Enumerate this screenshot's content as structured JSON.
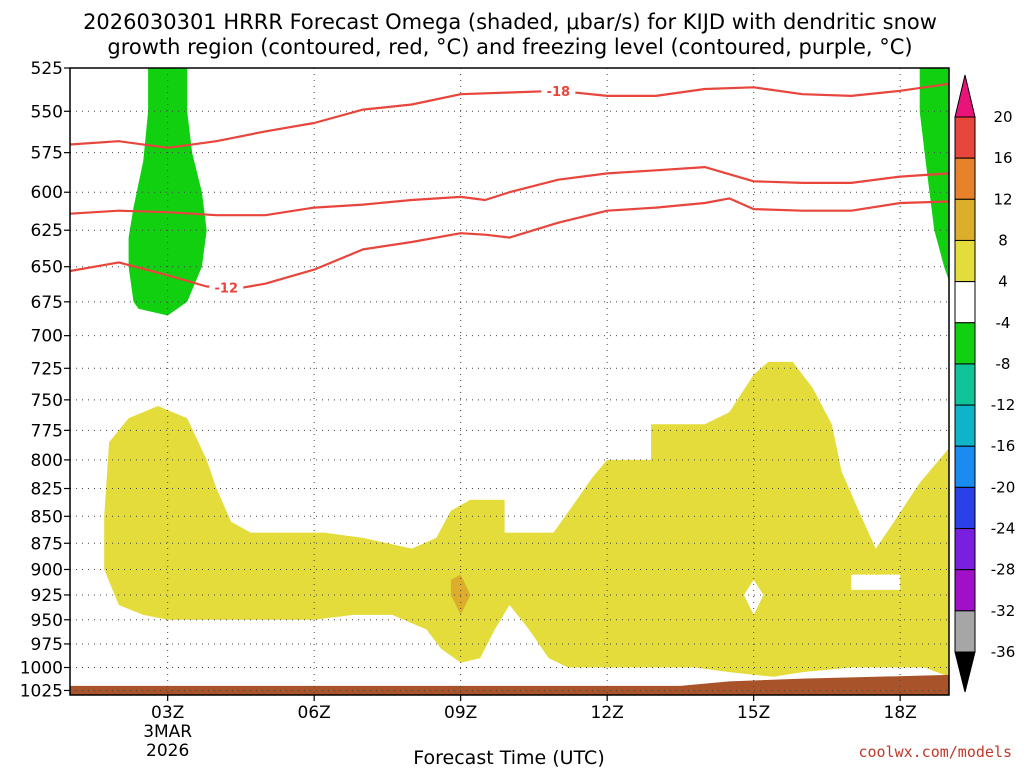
{
  "chart_data": {
    "type": "heatmap",
    "title_lines": [
      "2026030301 HRRR Forecast Omega (shaded, μbar/s) for KIJD with dendritic snow",
      "growth region (contoured, red, °C) and freezing level (contoured, purple, °C)"
    ],
    "xlabel": "Forecast Time (UTC)",
    "x_range_hours": [
      0,
      18
    ],
    "x_ticks": [
      {
        "hour": 2,
        "label": "03Z"
      },
      {
        "hour": 5,
        "label": "06Z"
      },
      {
        "hour": 8,
        "label": "09Z"
      },
      {
        "hour": 11,
        "label": "12Z"
      },
      {
        "hour": 14,
        "label": "15Z"
      },
      {
        "hour": 17,
        "label": "18Z"
      }
    ],
    "x_sublabels": [
      "3MAR",
      "2026"
    ],
    "ylabel": "",
    "y_axis_scale": "log-pressure",
    "y_range_mb": [
      1030,
      525
    ],
    "y_ticks": [
      525,
      550,
      575,
      600,
      625,
      650,
      675,
      700,
      725,
      750,
      775,
      800,
      825,
      850,
      875,
      900,
      925,
      950,
      975,
      1000,
      1025
    ],
    "grid": true,
    "colorbar": {
      "placement": "right",
      "labels": [
        20,
        16,
        12,
        8,
        4,
        -4,
        -8,
        -12,
        -16,
        -20,
        -24,
        -28,
        -32,
        -36
      ],
      "bins": [
        {
          "from": 20,
          "to": 16,
          "color": "#e8453c"
        },
        {
          "from": 16,
          "to": 12,
          "color": "#e8822a"
        },
        {
          "from": 12,
          "to": 8,
          "color": "#dcae2c"
        },
        {
          "from": 8,
          "to": 4,
          "color": "#e3dc3a"
        },
        {
          "from": 4,
          "to": -4,
          "color": "#ffffff"
        },
        {
          "from": -4,
          "to": -8,
          "color": "#10d010"
        },
        {
          "from": -8,
          "to": -12,
          "color": "#10c49a"
        },
        {
          "from": -12,
          "to": -16,
          "color": "#10b4c8"
        },
        {
          "from": -16,
          "to": -20,
          "color": "#1a8cf0"
        },
        {
          "from": -20,
          "to": -24,
          "color": "#2a40e8"
        },
        {
          "from": -24,
          "to": -28,
          "color": "#7a1ee0"
        },
        {
          "from": -28,
          "to": -32,
          "color": "#a010c8"
        },
        {
          "from": -32,
          "to": -36,
          "color": "#a6a6a6"
        }
      ],
      "top_extension_color": "#e8147a",
      "bottom_extension_color": "#000000"
    },
    "shaded_regions": [
      {
        "name": "descent-green-early",
        "bin": "-4 to -8",
        "color": "#10d010",
        "points": [
          [
            1.6,
            525
          ],
          [
            2.4,
            525
          ],
          [
            2.4,
            550
          ],
          [
            2.5,
            575
          ],
          [
            2.7,
            600
          ],
          [
            2.8,
            625
          ],
          [
            2.7,
            650
          ],
          [
            2.4,
            675
          ],
          [
            2.0,
            685
          ],
          [
            1.4,
            680
          ],
          [
            1.3,
            675
          ],
          [
            1.2,
            650
          ],
          [
            1.2,
            630
          ],
          [
            1.3,
            610
          ],
          [
            1.5,
            580
          ],
          [
            1.6,
            550
          ]
        ]
      },
      {
        "name": "descent-green-late",
        "bin": "-4 to -8",
        "color": "#10d010",
        "points": [
          [
            17.4,
            525
          ],
          [
            18.0,
            525
          ],
          [
            18.0,
            660
          ],
          [
            17.9,
            650
          ],
          [
            17.7,
            625
          ],
          [
            17.6,
            600
          ],
          [
            17.5,
            575
          ],
          [
            17.4,
            550
          ]
        ]
      },
      {
        "name": "ascent-yellow",
        "bin": "4 to 8",
        "color": "#e3dc3a",
        "points": [
          [
            0.7,
            850
          ],
          [
            0.8,
            785
          ],
          [
            1.2,
            765
          ],
          [
            1.8,
            755
          ],
          [
            2.4,
            765
          ],
          [
            2.8,
            800
          ],
          [
            3.0,
            825
          ],
          [
            3.3,
            855
          ],
          [
            3.7,
            865
          ],
          [
            4.5,
            865
          ],
          [
            5.2,
            865
          ],
          [
            6.0,
            870
          ],
          [
            7.0,
            880
          ],
          [
            7.5,
            870
          ],
          [
            7.8,
            845
          ],
          [
            8.2,
            835
          ],
          [
            8.6,
            835
          ],
          [
            8.9,
            835
          ],
          [
            8.9,
            865
          ],
          [
            9.9,
            865
          ],
          [
            10.3,
            840
          ],
          [
            10.7,
            815
          ],
          [
            11.0,
            800
          ],
          [
            11.5,
            800
          ],
          [
            11.9,
            800
          ],
          [
            11.9,
            780
          ],
          [
            11.9,
            770
          ],
          [
            12.5,
            770
          ],
          [
            13.0,
            770
          ],
          [
            13.5,
            760
          ],
          [
            14.0,
            730
          ],
          [
            14.3,
            720
          ],
          [
            14.8,
            720
          ],
          [
            15.2,
            740
          ],
          [
            15.6,
            770
          ],
          [
            15.8,
            810
          ],
          [
            16.2,
            850
          ],
          [
            16.5,
            880
          ],
          [
            16.8,
            860
          ],
          [
            17.4,
            820
          ],
          [
            18.0,
            790
          ],
          [
            18.0,
            1010
          ],
          [
            17.5,
            1000
          ],
          [
            16.8,
            1000
          ],
          [
            16.0,
            1000
          ],
          [
            15.0,
            1005
          ],
          [
            14.4,
            1010
          ],
          [
            13.5,
            1005
          ],
          [
            12.8,
            1000
          ],
          [
            12.0,
            1000
          ],
          [
            11.0,
            1000
          ],
          [
            10.2,
            1000
          ],
          [
            9.8,
            990
          ],
          [
            9.4,
            960
          ],
          [
            9.0,
            935
          ],
          [
            8.7,
            960
          ],
          [
            8.4,
            990
          ],
          [
            8.0,
            995
          ],
          [
            7.6,
            980
          ],
          [
            7.3,
            960
          ],
          [
            6.6,
            945
          ],
          [
            5.8,
            945
          ],
          [
            5.0,
            950
          ],
          [
            4.0,
            950
          ],
          [
            3.0,
            950
          ],
          [
            2.0,
            950
          ],
          [
            1.5,
            945
          ],
          [
            1.0,
            935
          ],
          [
            0.7,
            900
          ]
        ]
      }
    ],
    "cutouts": [
      {
        "name": "hole-diamond",
        "color": "#ffffff",
        "points": [
          [
            13.8,
            925
          ],
          [
            14.0,
            910
          ],
          [
            14.2,
            925
          ],
          [
            14.0,
            945
          ]
        ]
      },
      {
        "name": "hole-rect",
        "color": "#ffffff",
        "points": [
          [
            16.0,
            905
          ],
          [
            17.0,
            905
          ],
          [
            17.0,
            920
          ],
          [
            16.0,
            920
          ]
        ]
      }
    ],
    "small_patches": [
      {
        "name": "omega-orange-spot",
        "bin": "8 to 12",
        "color": "#dcae2c",
        "points": [
          [
            8.0,
            905
          ],
          [
            8.2,
            925
          ],
          [
            8.0,
            945
          ],
          [
            7.8,
            925
          ],
          [
            7.8,
            910
          ]
        ]
      }
    ],
    "contours": [
      {
        "label": "-18",
        "color": "#e8453c",
        "label_at": 10.0,
        "points": [
          [
            0,
            570
          ],
          [
            1,
            568
          ],
          [
            2,
            572
          ],
          [
            3,
            568
          ],
          [
            4,
            562
          ],
          [
            5,
            557
          ],
          [
            6,
            549
          ],
          [
            7,
            546
          ],
          [
            8,
            540
          ],
          [
            9,
            539
          ],
          [
            10,
            538
          ],
          [
            11,
            541
          ],
          [
            12,
            541
          ],
          [
            13,
            537
          ],
          [
            14,
            536
          ],
          [
            15,
            540
          ],
          [
            16,
            541
          ],
          [
            17,
            538
          ],
          [
            18,
            534
          ]
        ]
      },
      {
        "label": "",
        "color": "#e8453c",
        "label_at": null,
        "points": [
          [
            0,
            614
          ],
          [
            1,
            612
          ],
          [
            2,
            613
          ],
          [
            3,
            615
          ],
          [
            4,
            615
          ],
          [
            5,
            610
          ],
          [
            6,
            608
          ],
          [
            7,
            605
          ],
          [
            8,
            603
          ],
          [
            8.5,
            605
          ],
          [
            9,
            600
          ],
          [
            10,
            592
          ],
          [
            11,
            588
          ],
          [
            12,
            586
          ],
          [
            13,
            584
          ],
          [
            14,
            593
          ],
          [
            15,
            594
          ],
          [
            16,
            594
          ],
          [
            17,
            590
          ],
          [
            18,
            588
          ]
        ]
      },
      {
        "label": "-12",
        "color": "#e8453c",
        "label_at": 3.2,
        "points": [
          [
            0,
            653
          ],
          [
            1,
            647
          ],
          [
            2,
            656
          ],
          [
            2.8,
            664
          ],
          [
            3.5,
            665
          ],
          [
            4.0,
            662
          ],
          [
            5,
            652
          ],
          [
            6,
            638
          ],
          [
            7,
            633
          ],
          [
            8,
            627
          ],
          [
            8.5,
            628
          ],
          [
            9,
            630
          ],
          [
            10,
            620
          ],
          [
            11,
            612
          ],
          [
            12,
            610
          ],
          [
            13,
            607
          ],
          [
            13.5,
            604
          ],
          [
            14,
            611
          ],
          [
            15,
            612
          ],
          [
            16,
            612
          ],
          [
            17,
            607
          ],
          [
            18,
            606
          ]
        ]
      }
    ],
    "ground": {
      "color": "#a8532a",
      "points": [
        [
          0,
          1030
        ],
        [
          0,
          1020
        ],
        [
          12.5,
          1020
        ],
        [
          13.5,
          1015
        ],
        [
          15,
          1012
        ],
        [
          16.5,
          1010
        ],
        [
          18,
          1008
        ],
        [
          18,
          1030
        ]
      ]
    }
  },
  "credit": "coolwx.com/models"
}
